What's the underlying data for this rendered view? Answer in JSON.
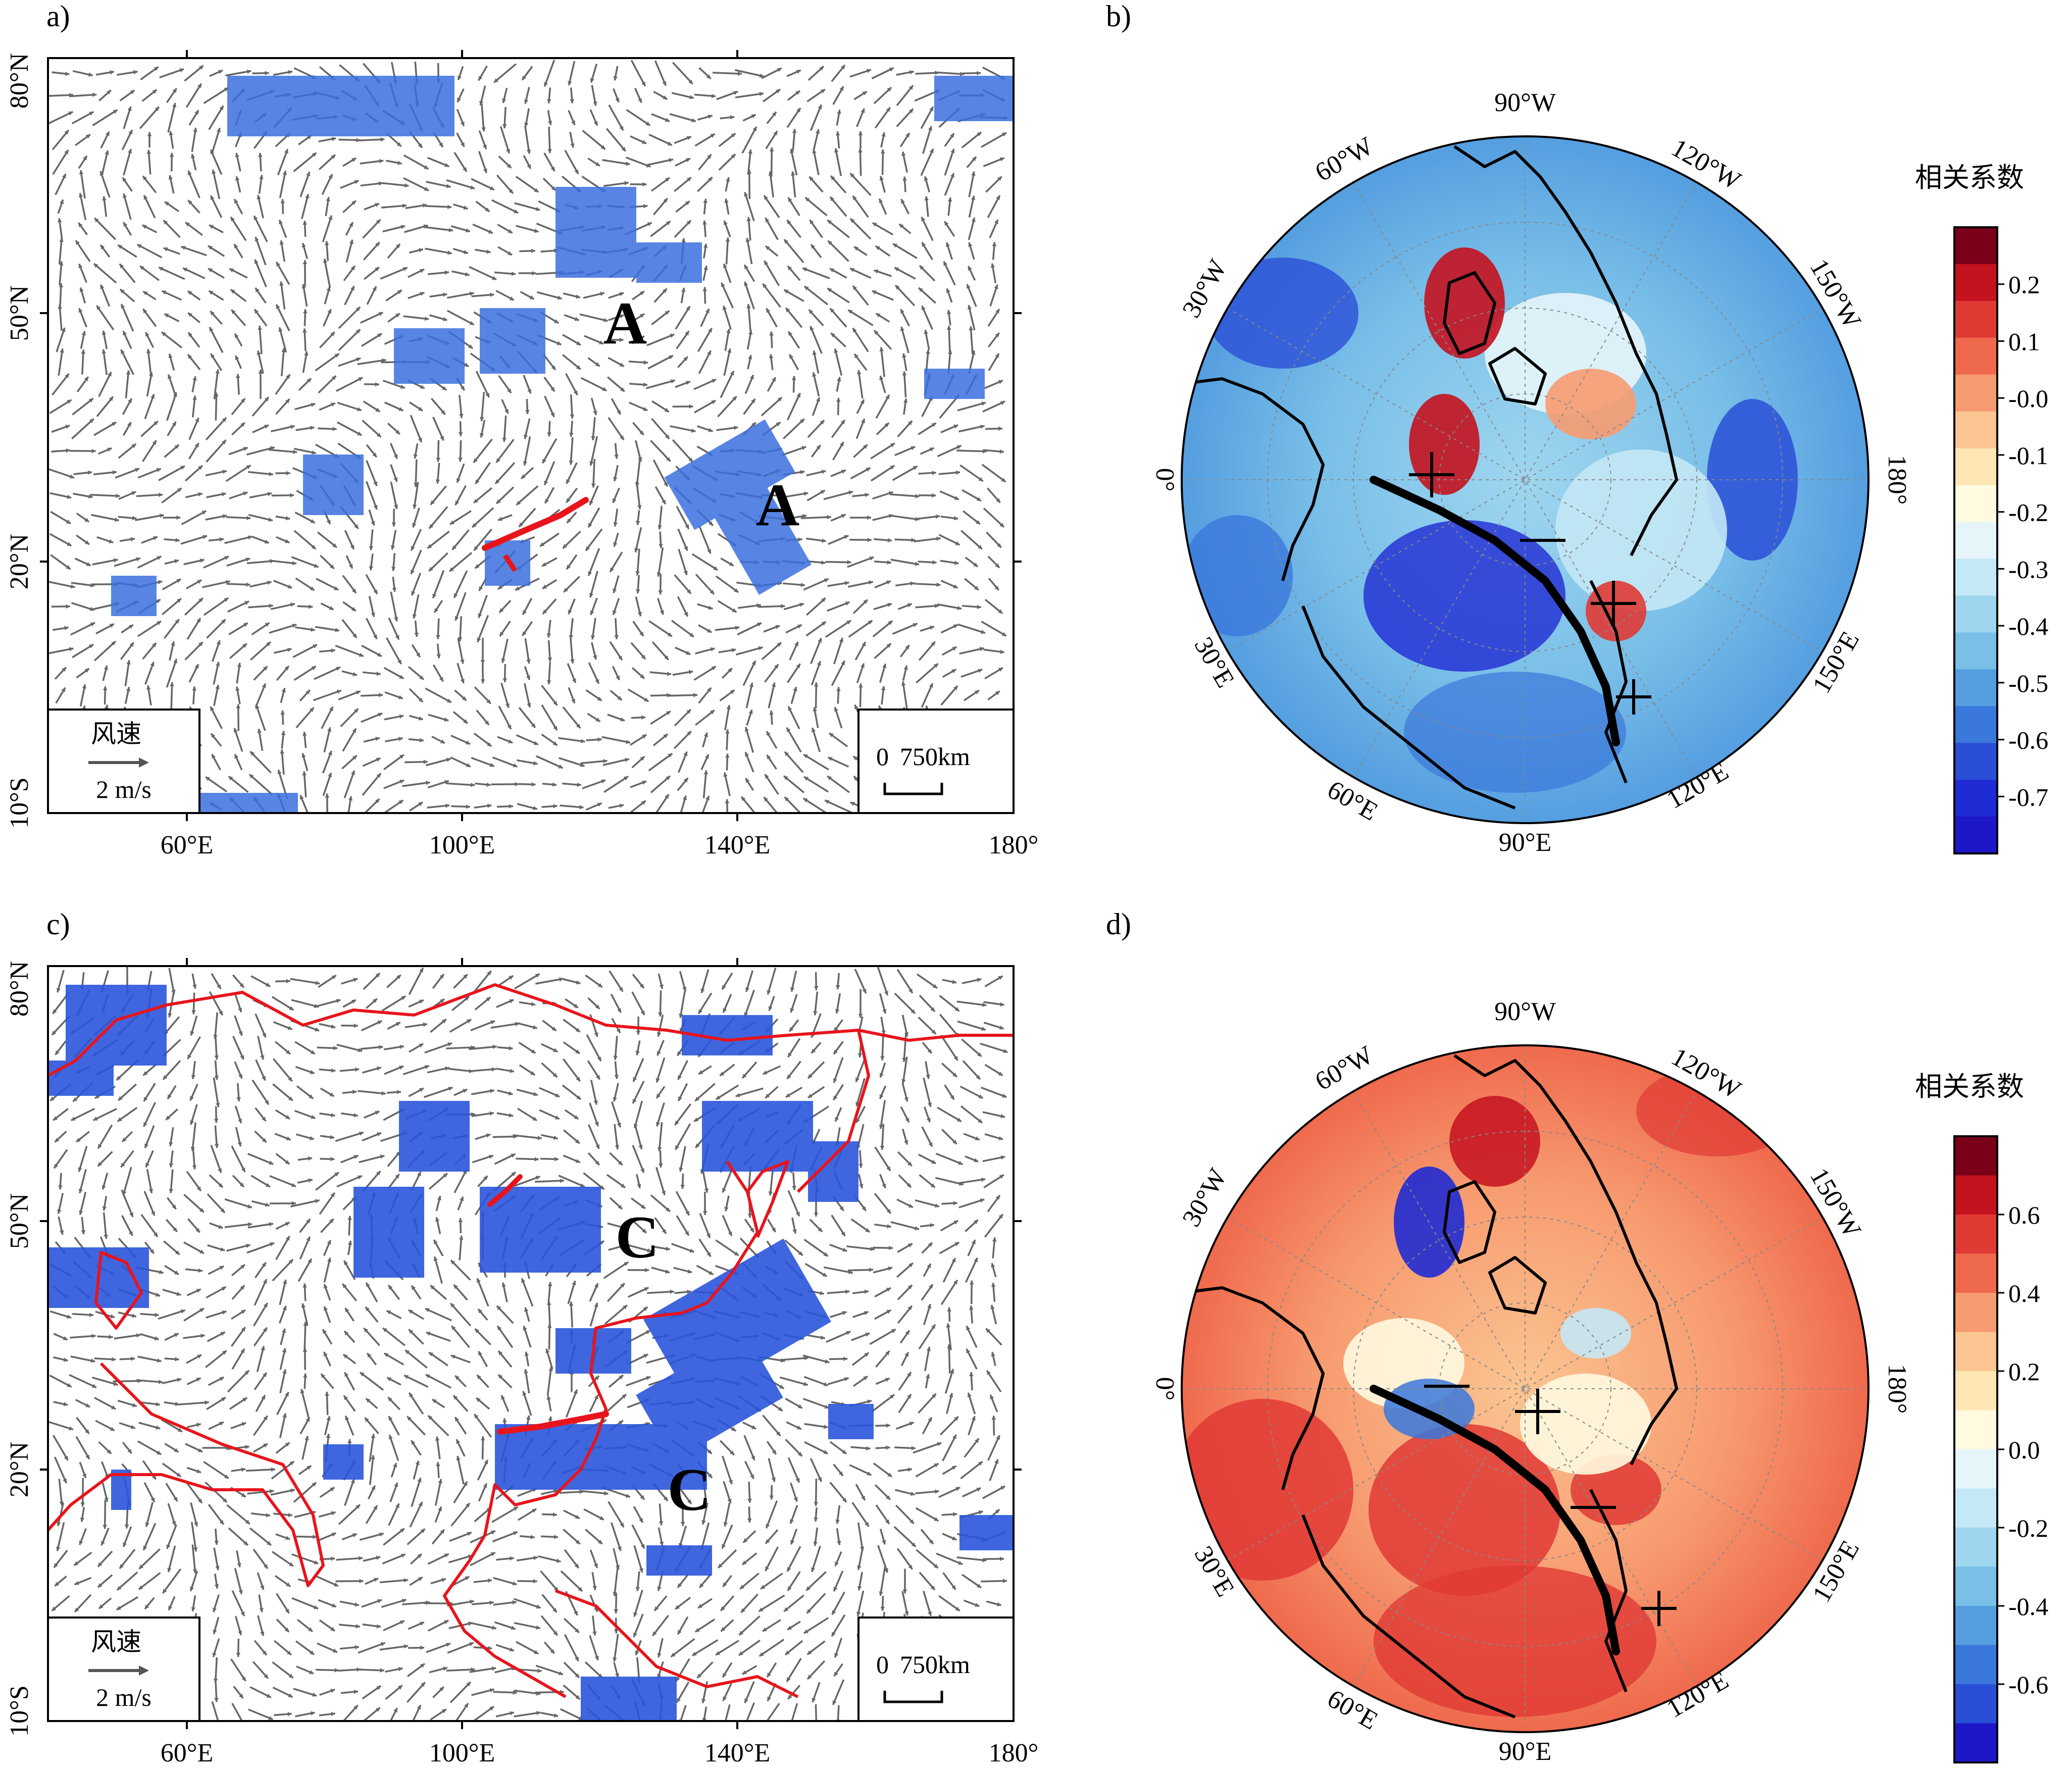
{
  "panels": [
    {
      "id": "a",
      "label": "a)",
      "lat_ticks": [
        "80°N",
        "50°N",
        "20°N",
        "10°S"
      ],
      "lon_ticks": [
        "60°E",
        "100°E",
        "140°E",
        "180°"
      ],
      "annotations": [
        "A",
        "A"
      ],
      "legend": {
        "title": "风速",
        "speed": "2 m/s"
      },
      "scale_bar": {
        "zero": "0",
        "distance": "750km"
      },
      "coast_color": "#000000"
    },
    {
      "id": "c",
      "label": "c)",
      "lat_ticks": [
        "80°N",
        "50°N",
        "20°N",
        "10°S"
      ],
      "lon_ticks": [
        "60°E",
        "100°E",
        "140°E",
        "180°"
      ],
      "annotations": [
        "C",
        "C"
      ],
      "legend": {
        "title": "风速",
        "speed": "2 m/s"
      },
      "scale_bar": {
        "zero": "0",
        "distance": "750km"
      },
      "coast_color": "#e8141c"
    },
    {
      "id": "b",
      "label": "b)",
      "rim_labels": [
        "90°W",
        "120°W",
        "150°W",
        "180°",
        "150°E",
        "120°E",
        "90°E",
        "60°E",
        "30°E",
        "0°",
        "30°W",
        "60°W"
      ],
      "colorbar": {
        "title": "相关系数",
        "ticks": [
          "0.2",
          "0.1",
          "-0.0",
          "-0.1",
          "-0.2",
          "-0.3",
          "-0.4",
          "-0.5",
          "-0.6",
          "-0.7"
        ],
        "colors": [
          "#7a0019",
          "#c4121f",
          "#e03a35",
          "#ef6a4d",
          "#f79b70",
          "#fbc591",
          "#fde6b4",
          "#fffae0",
          "#e6f5fa",
          "#c4e8f5",
          "#9fd6ef",
          "#79bfe8",
          "#559ee0",
          "#3a78dc",
          "#2a4fd7",
          "#1f2bd3",
          "#1d17c8"
        ]
      }
    },
    {
      "id": "d",
      "label": "d)",
      "rim_labels": [
        "90°W",
        "120°W",
        "150°W",
        "180°",
        "150°E",
        "120°E",
        "90°E",
        "60°E",
        "30°E",
        "0°",
        "30°W",
        "60°W"
      ],
      "colorbar": {
        "title": "相关系数",
        "ticks": [
          "0.6",
          "0.4",
          "0.2",
          "0.0",
          "-0.2",
          "-0.4",
          "-0.6"
        ],
        "colors": [
          "#7a0019",
          "#c4121f",
          "#e03a35",
          "#ef6a4d",
          "#f79b70",
          "#fbc591",
          "#fde6b4",
          "#fffae0",
          "#e6f5fa",
          "#c4e8f5",
          "#9fd6ef",
          "#79bfe8",
          "#559ee0",
          "#3a78dc",
          "#2a4fd7",
          "#1d17c8"
        ]
      }
    }
  ],
  "polar_markers": [
    "+",
    "−"
  ]
}
